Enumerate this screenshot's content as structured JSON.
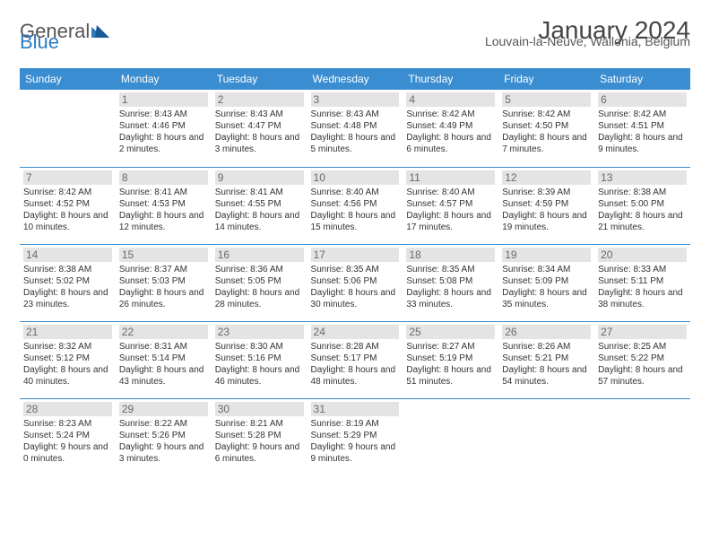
{
  "logo": {
    "text_gray": "General",
    "text_blue": "Blue"
  },
  "title": "January 2024",
  "subtitle": "Louvain-la-Neuve, Wallonia, Belgium",
  "colors": {
    "header_bg": "#3a8dd0",
    "header_text": "#ffffff",
    "daynum_bg": "#e4e4e4",
    "daynum_text": "#6a6a6a",
    "border": "#3a8dd0",
    "body_text": "#333333",
    "logo_gray": "#555555",
    "logo_blue": "#2d7cc1"
  },
  "weekdays": [
    "Sunday",
    "Monday",
    "Tuesday",
    "Wednesday",
    "Thursday",
    "Friday",
    "Saturday"
  ],
  "weeks": [
    [
      null,
      {
        "n": "1",
        "sr": "8:43 AM",
        "ss": "4:46 PM",
        "dl": "8 hours and 2 minutes."
      },
      {
        "n": "2",
        "sr": "8:43 AM",
        "ss": "4:47 PM",
        "dl": "8 hours and 3 minutes."
      },
      {
        "n": "3",
        "sr": "8:43 AM",
        "ss": "4:48 PM",
        "dl": "8 hours and 5 minutes."
      },
      {
        "n": "4",
        "sr": "8:42 AM",
        "ss": "4:49 PM",
        "dl": "8 hours and 6 minutes."
      },
      {
        "n": "5",
        "sr": "8:42 AM",
        "ss": "4:50 PM",
        "dl": "8 hours and 7 minutes."
      },
      {
        "n": "6",
        "sr": "8:42 AM",
        "ss": "4:51 PM",
        "dl": "8 hours and 9 minutes."
      }
    ],
    [
      {
        "n": "7",
        "sr": "8:42 AM",
        "ss": "4:52 PM",
        "dl": "8 hours and 10 minutes."
      },
      {
        "n": "8",
        "sr": "8:41 AM",
        "ss": "4:53 PM",
        "dl": "8 hours and 12 minutes."
      },
      {
        "n": "9",
        "sr": "8:41 AM",
        "ss": "4:55 PM",
        "dl": "8 hours and 14 minutes."
      },
      {
        "n": "10",
        "sr": "8:40 AM",
        "ss": "4:56 PM",
        "dl": "8 hours and 15 minutes."
      },
      {
        "n": "11",
        "sr": "8:40 AM",
        "ss": "4:57 PM",
        "dl": "8 hours and 17 minutes."
      },
      {
        "n": "12",
        "sr": "8:39 AM",
        "ss": "4:59 PM",
        "dl": "8 hours and 19 minutes."
      },
      {
        "n": "13",
        "sr": "8:38 AM",
        "ss": "5:00 PM",
        "dl": "8 hours and 21 minutes."
      }
    ],
    [
      {
        "n": "14",
        "sr": "8:38 AM",
        "ss": "5:02 PM",
        "dl": "8 hours and 23 minutes."
      },
      {
        "n": "15",
        "sr": "8:37 AM",
        "ss": "5:03 PM",
        "dl": "8 hours and 26 minutes."
      },
      {
        "n": "16",
        "sr": "8:36 AM",
        "ss": "5:05 PM",
        "dl": "8 hours and 28 minutes."
      },
      {
        "n": "17",
        "sr": "8:35 AM",
        "ss": "5:06 PM",
        "dl": "8 hours and 30 minutes."
      },
      {
        "n": "18",
        "sr": "8:35 AM",
        "ss": "5:08 PM",
        "dl": "8 hours and 33 minutes."
      },
      {
        "n": "19",
        "sr": "8:34 AM",
        "ss": "5:09 PM",
        "dl": "8 hours and 35 minutes."
      },
      {
        "n": "20",
        "sr": "8:33 AM",
        "ss": "5:11 PM",
        "dl": "8 hours and 38 minutes."
      }
    ],
    [
      {
        "n": "21",
        "sr": "8:32 AM",
        "ss": "5:12 PM",
        "dl": "8 hours and 40 minutes."
      },
      {
        "n": "22",
        "sr": "8:31 AM",
        "ss": "5:14 PM",
        "dl": "8 hours and 43 minutes."
      },
      {
        "n": "23",
        "sr": "8:30 AM",
        "ss": "5:16 PM",
        "dl": "8 hours and 46 minutes."
      },
      {
        "n": "24",
        "sr": "8:28 AM",
        "ss": "5:17 PM",
        "dl": "8 hours and 48 minutes."
      },
      {
        "n": "25",
        "sr": "8:27 AM",
        "ss": "5:19 PM",
        "dl": "8 hours and 51 minutes."
      },
      {
        "n": "26",
        "sr": "8:26 AM",
        "ss": "5:21 PM",
        "dl": "8 hours and 54 minutes."
      },
      {
        "n": "27",
        "sr": "8:25 AM",
        "ss": "5:22 PM",
        "dl": "8 hours and 57 minutes."
      }
    ],
    [
      {
        "n": "28",
        "sr": "8:23 AM",
        "ss": "5:24 PM",
        "dl": "9 hours and 0 minutes."
      },
      {
        "n": "29",
        "sr": "8:22 AM",
        "ss": "5:26 PM",
        "dl": "9 hours and 3 minutes."
      },
      {
        "n": "30",
        "sr": "8:21 AM",
        "ss": "5:28 PM",
        "dl": "9 hours and 6 minutes."
      },
      {
        "n": "31",
        "sr": "8:19 AM",
        "ss": "5:29 PM",
        "dl": "9 hours and 9 minutes."
      },
      null,
      null,
      null
    ]
  ],
  "labels": {
    "sunrise": "Sunrise:",
    "sunset": "Sunset:",
    "daylight": "Daylight:"
  }
}
